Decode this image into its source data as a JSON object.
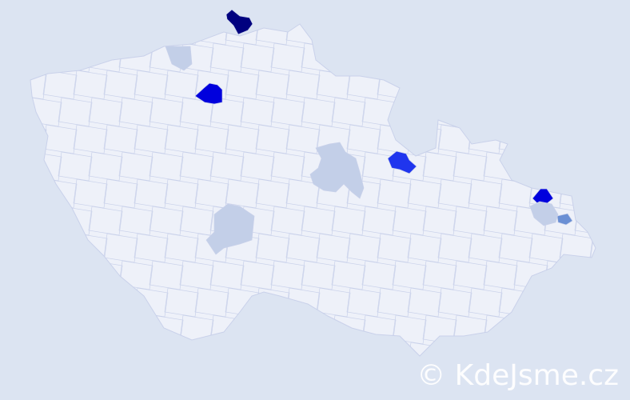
{
  "watermark": "© KdeJsme.cz",
  "colors": {
    "background": "#dce4f2",
    "country_fill": "#eef1f9",
    "border": "#c9d1ea",
    "level_low": "#c3cfe8",
    "level_mid": "#6a8fd4",
    "level_high": "#1f35ee",
    "level_higher": "#0000dd",
    "level_max": "#00007f"
  },
  "highlighted_regions": [
    {
      "level": "level_max"
    },
    {
      "level": "level_higher"
    },
    {
      "level": "level_high"
    },
    {
      "level": "level_higher"
    },
    {
      "level": "level_mid"
    },
    {
      "level": "level_low"
    },
    {
      "level": "level_low"
    },
    {
      "level": "level_low"
    },
    {
      "level": "level_low"
    }
  ]
}
